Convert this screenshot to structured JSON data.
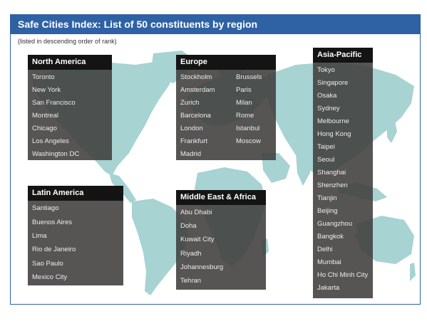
{
  "title": "Safe Cities Index: List of 50 constituents by region",
  "subtitle": "(listed in descending order of rank)",
  "regions": {
    "north_america": {
      "name": "North America",
      "cities": [
        "Toronto",
        "New York",
        "San Francisco",
        "Montreal",
        "Chicago",
        "Los Angeles",
        "Washington DC"
      ]
    },
    "europe": {
      "name": "Europe",
      "cities_col1": [
        "Stockholm",
        "Amsterdam",
        "Zurich",
        "Barcelona",
        "London",
        "Frankfurt",
        "Madrid"
      ],
      "cities_col2": [
        "Brussels",
        "Paris",
        "Milan",
        "Rome",
        "Istanbul",
        "Moscow"
      ]
    },
    "asia_pacific": {
      "name": "Asia-Pacific",
      "cities": [
        "Tokyo",
        "Singapore",
        "Osaka",
        "Sydney",
        "Melbourne",
        "Hong Kong",
        "Taipei",
        "Seoul",
        "Shanghai",
        "Shenzhen",
        "Tianjin",
        "Beijing",
        "Guangzhou",
        "Bangkok",
        "Delhi",
        "Mumbai",
        "Ho Chi Minh City",
        "Jakarta"
      ]
    },
    "latin_america": {
      "name": "Latin America",
      "cities": [
        "Santiago",
        "Buenos Aires",
        "Lima",
        "Rio de Janeiro",
        "Sao Paulo",
        "Mexico City"
      ]
    },
    "middle_east_africa": {
      "name": "Middle East & Africa",
      "cities": [
        "Abu Dhabi",
        "Doha",
        "Kuwait City",
        "Riyadh",
        "Johannesburg",
        "Tehran"
      ]
    }
  },
  "colors": {
    "header_bar": "#2f62a4",
    "land": "#a7d3d2",
    "box": "#403e3c",
    "box_header": "#141414"
  }
}
